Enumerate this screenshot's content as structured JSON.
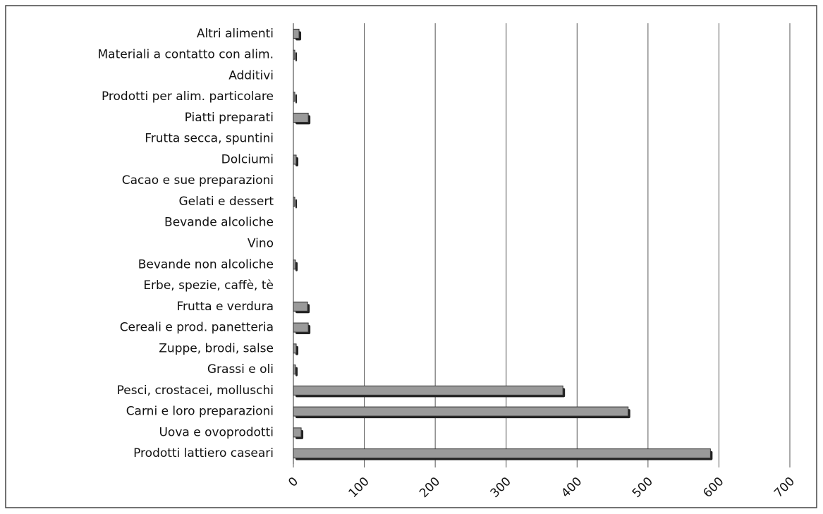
{
  "chart_data": {
    "type": "bar",
    "orientation": "horizontal",
    "categories": [
      "Altri alimenti",
      "Materiali a contatto con alim.",
      "Additivi",
      "Prodotti per alim. particolare",
      "Piatti preparati",
      "Frutta secca, spuntini",
      "Dolciumi",
      "Cacao e sue preparazioni",
      "Gelati e dessert",
      "Bevande alcoliche",
      "Vino",
      "Bevande non alcoliche",
      "Erbe, spezie, caffè, tè",
      "Frutta e verdura",
      "Cereali e prod. panetteria",
      "Zuppe, brodi, salse",
      "Grassi e oli",
      "Pesci, crostacei, molluschi",
      "Carni e loro preparazioni",
      "Uova e ovoprodotti",
      "Prodotti lattiero caseari"
    ],
    "values": [
      8,
      2,
      0,
      2,
      21,
      0,
      4,
      0,
      2,
      0,
      0,
      3,
      0,
      20,
      21,
      4,
      3,
      380,
      472,
      11,
      588
    ],
    "color": "#9a9a9a",
    "xlim": [
      0,
      700
    ],
    "xticks": [
      0,
      100,
      200,
      300,
      400,
      500,
      600,
      700
    ],
    "grid": true
  }
}
